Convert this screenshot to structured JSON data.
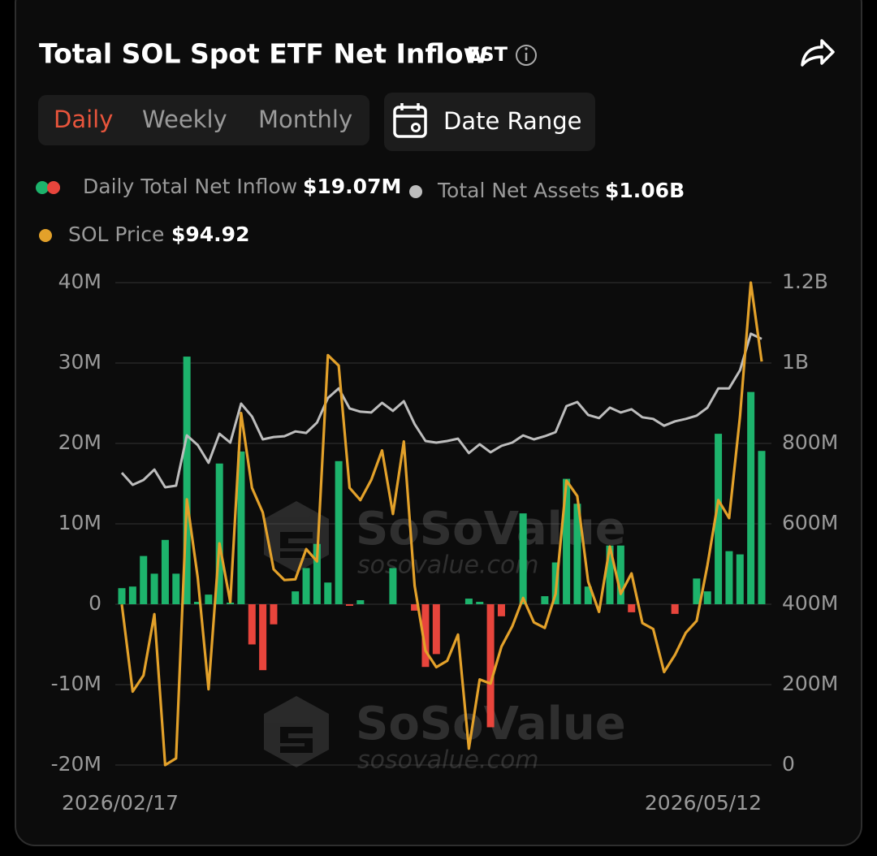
{
  "ui": {
    "timezone": "EST",
    "tabs": [
      "Daily",
      "Weekly",
      "Monthly"
    ],
    "active_tab": 0,
    "active_color": "#e8553c",
    "date_range": "Date Range"
  },
  "chart_data": {
    "type": "bar-line",
    "title": "Total SOL Spot ETF Net Inflow",
    "categories": [
      "2026/02/17",
      null,
      null,
      null,
      null,
      null,
      null,
      null,
      null,
      null,
      null,
      null,
      null,
      null,
      null,
      null,
      null,
      null,
      null,
      null,
      null,
      null,
      null,
      null,
      null,
      null,
      null,
      null,
      null,
      null,
      null,
      null,
      null,
      null,
      null,
      null,
      null,
      null,
      null,
      null,
      null,
      null,
      null,
      null,
      null,
      null,
      null,
      null,
      null,
      null,
      null,
      null,
      null,
      null,
      null,
      null,
      null,
      null,
      null,
      "2026/05/12"
    ],
    "series": [
      {
        "name": "Daily Total Net Inflow",
        "type": "bar",
        "axis": "y",
        "color": "#1db36c",
        "negative_color": "#e8453c",
        "current_label": "$19.07M",
        "values": [
          2,
          2.2,
          6,
          3.8,
          8,
          3.8,
          30.8,
          0.3,
          1.2,
          17.5,
          0.2,
          19,
          -5,
          -8.2,
          -2.5,
          0,
          1.6,
          4.5,
          7.5,
          2.7,
          17.8,
          -0.2,
          0.5,
          0,
          0,
          4.5,
          0,
          -0.8,
          -7.8,
          -6.2,
          0,
          0,
          0.7,
          0.3,
          -15.3,
          -1.5,
          0,
          11.3,
          0,
          1,
          5.2,
          15.6,
          12.5,
          2.2,
          0,
          7.3,
          7.3,
          -1,
          0,
          0,
          0,
          -1.2,
          0,
          3.2,
          1.6,
          21.2,
          6.6,
          6.2,
          26.4,
          19.07
        ]
      },
      {
        "name": "Total Net Assets",
        "type": "line",
        "axis": "y2",
        "color": "#bdbdbd",
        "current_label": "$1.06B",
        "values": [
          727,
          697,
          709,
          735,
          691,
          695,
          820,
          796,
          752,
          824,
          802,
          899,
          867,
          810,
          816,
          818,
          830,
          826,
          852,
          913,
          937,
          887,
          879,
          877,
          901,
          881,
          905,
          848,
          806,
          802,
          806,
          812,
          776,
          798,
          778,
          794,
          802,
          820,
          810,
          818,
          828,
          893,
          903,
          871,
          863,
          889,
          877,
          885,
          865,
          861,
          844,
          855,
          861,
          869,
          889,
          937,
          937,
          982,
          1073,
          1060
        ]
      },
      {
        "name": "SOL Price",
        "type": "line",
        "axis": "none",
        "color": "#e3a12a",
        "current_label": "$94.92",
        "values": [
          85.44,
          82.04,
          82.67,
          85.06,
          79.17,
          79.43,
          89.54,
          86.49,
          82.13,
          87.82,
          85.53,
          92.91,
          89.99,
          89.03,
          86.81,
          86.39,
          86.42,
          87.6,
          87.12,
          95.17,
          94.76,
          89.99,
          89.51,
          90.3,
          91.45,
          88.97,
          91.8,
          86.17,
          83.63,
          82.99,
          83.24,
          84.26,
          79.81,
          82.51,
          82.35,
          83.79,
          84.58,
          85.69,
          84.74,
          84.52,
          85.85,
          90.27,
          89.67,
          86.33,
          85.15,
          87.7,
          85.85,
          86.65,
          84.71,
          84.48,
          82.8,
          83.47,
          84.33,
          84.8,
          86.97,
          89.51,
          88.81,
          92.78,
          98,
          94.92
        ]
      }
    ],
    "ylim": [
      -20,
      40
    ],
    "yticks": [
      {
        "value": -20,
        "label": "-20M"
      },
      {
        "value": -10,
        "label": "-10M"
      },
      0,
      {
        "value": 10,
        "label": "10M"
      },
      {
        "value": 20,
        "label": "20M"
      },
      {
        "value": 30,
        "label": "30M"
      },
      {
        "value": 40,
        "label": "40M"
      }
    ],
    "y2lim": [
      0,
      1200
    ],
    "y2ticks": [
      0,
      {
        "value": 200,
        "label": "200M"
      },
      {
        "value": 400,
        "label": "400M"
      },
      {
        "value": 600,
        "label": "600M"
      },
      {
        "value": 800,
        "label": "800M"
      },
      {
        "value": 1000,
        "label": "1B"
      },
      {
        "value": 1200,
        "label": "1.2B"
      }
    ],
    "grid": true,
    "watermark": {
      "text": "SoSoValue",
      "url": "sosovalue.com"
    }
  }
}
